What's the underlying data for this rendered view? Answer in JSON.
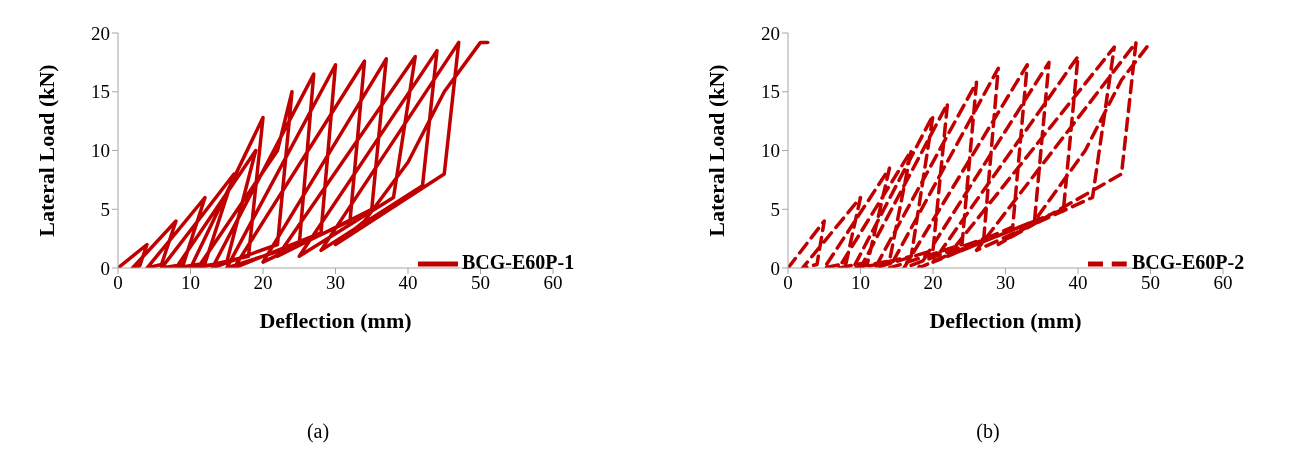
{
  "chart_data": [
    {
      "type": "line",
      "xlabel": "Deflection (mm)",
      "ylabel": "Lateral Load (kN)",
      "xlim": [
        0,
        60
      ],
      "ylim": [
        0,
        20
      ],
      "xticks": [
        0,
        10,
        20,
        30,
        40,
        50,
        60
      ],
      "yticks": [
        0,
        5,
        10,
        15,
        20
      ],
      "legend": "right",
      "marker": "none",
      "line_style": "solid",
      "annotations": [
        "(a)"
      ],
      "series": [
        {
          "name": "BCG-E60P-1",
          "color": "#c00000",
          "x": [
            0,
            4,
            3,
            2,
            8,
            6,
            4,
            12,
            9,
            6,
            16,
            12,
            8,
            19,
            15,
            10,
            20,
            18,
            11,
            22,
            24,
            22,
            13,
            27,
            25,
            15,
            30,
            28,
            16,
            34,
            32,
            20,
            37,
            35,
            22,
            41,
            38,
            25,
            44,
            42,
            28,
            47,
            45,
            30,
            34,
            40,
            45,
            50,
            51
          ],
          "values": [
            0,
            2,
            0.2,
            0,
            4,
            0.3,
            0,
            6,
            0.3,
            0,
            8,
            0.4,
            0,
            10,
            0.5,
            0,
            12.8,
            1,
            0,
            10,
            15,
            2,
            0,
            16.5,
            2,
            0,
            17.3,
            3,
            0,
            17.6,
            4,
            0.5,
            17.8,
            5,
            1,
            18,
            6,
            1,
            18.5,
            7,
            1.5,
            19.2,
            8,
            2,
            4,
            9,
            15,
            19.2,
            19.2
          ]
        }
      ]
    },
    {
      "type": "line",
      "xlabel": "Deflection (mm)",
      "ylabel": "Lateral Load (kN)",
      "xlim": [
        0,
        60
      ],
      "ylim": [
        0,
        20
      ],
      "xticks": [
        0,
        10,
        20,
        30,
        40,
        50,
        60
      ],
      "yticks": [
        0,
        5,
        10,
        15,
        20
      ],
      "legend": "right",
      "marker": "none",
      "line_style": "dashed",
      "annotations": [
        "(b)"
      ],
      "series": [
        {
          "name": "BCG-E60P-2",
          "color": "#c00000",
          "x": [
            0,
            5,
            4,
            2,
            10,
            8,
            5,
            14,
            11,
            7,
            17,
            14,
            9,
            20,
            17,
            10,
            22,
            20,
            12,
            26,
            24,
            14,
            29,
            27,
            16,
            33,
            31,
            18,
            36,
            34,
            20,
            40,
            38,
            22,
            45,
            42,
            26,
            48,
            46,
            29,
            34,
            41,
            46,
            50
          ],
          "values": [
            0,
            4,
            0.3,
            0,
            6,
            0.4,
            0,
            8.5,
            0.5,
            0,
            10,
            0.6,
            0,
            13,
            1,
            0,
            14,
            1.5,
            0,
            15.8,
            2,
            0,
            17,
            2.5,
            0,
            17.3,
            3.5,
            0,
            17.5,
            4,
            0.5,
            18,
            5,
            1,
            18.8,
            6,
            1.5,
            19.2,
            8,
            2,
            4,
            10,
            16,
            19.2
          ]
        }
      ]
    }
  ]
}
